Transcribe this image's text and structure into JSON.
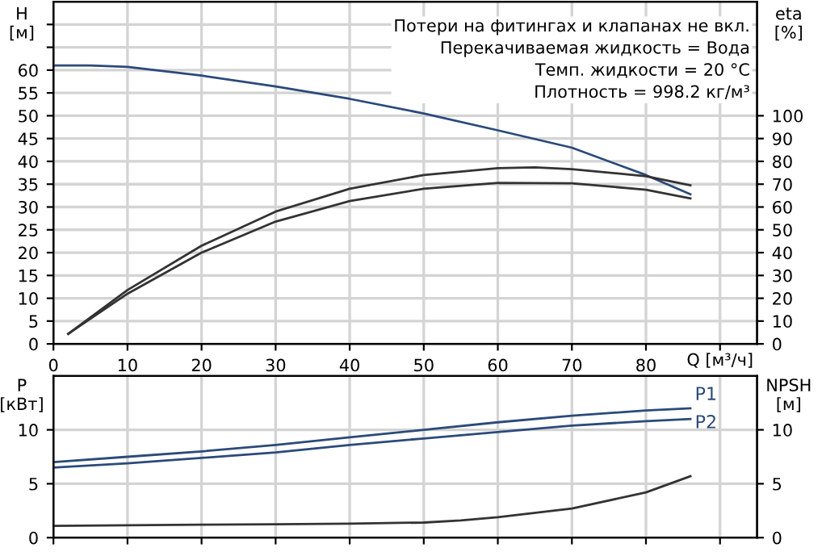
{
  "chart_data": [
    {
      "type": "line",
      "xlabel": "Q [м³/ч]",
      "ylabel": "H\n[м]",
      "y2label": "eta\n[%]",
      "annotations": [
        "Потери на фитингах и клапанах не вкл.",
        "Перекачиваемая жидкость = Вода",
        "Темп. жидкости = 20 °C",
        "Плотность = 998.2 кг/м³"
      ],
      "xlim": [
        0,
        95
      ],
      "xticks": [
        0,
        10,
        20,
        30,
        40,
        50,
        60,
        70,
        80,
        {
          "value": 90,
          "label": null
        }
      ],
      "ylim": [
        0,
        75
      ],
      "yticks": [
        0,
        5,
        10,
        15,
        20,
        25,
        30,
        35,
        40,
        45,
        50,
        55,
        60,
        {
          "value": 65,
          "label": null
        },
        {
          "value": 70,
          "label": null
        }
      ],
      "y2lim": [
        0,
        150
      ],
      "y2ticks": [
        0,
        10,
        20,
        30,
        40,
        50,
        60,
        70,
        80,
        90,
        100
      ],
      "grid": true,
      "legend": false,
      "marker": "none",
      "line_style": "solid",
      "series": [
        {
          "color": "#2b4a7a",
          "x": [
            0,
            5,
            10,
            20,
            30,
            40,
            50,
            60,
            70,
            80,
            86
          ],
          "values": [
            61,
            61,
            60.7,
            58.8,
            56.4,
            53.7,
            50.5,
            46.8,
            43,
            37,
            32.8
          ]
        },
        {
          "color": "#333333",
          "axis": "y2",
          "x": [
            2,
            10,
            20,
            30,
            40,
            50,
            60,
            65,
            70,
            80,
            86
          ],
          "values": [
            4.4,
            23.6,
            43,
            58,
            68,
            74,
            77,
            77.4,
            76.6,
            73.5,
            69.5
          ]
        },
        {
          "color": "#333333",
          "axis": "y2",
          "x": [
            2,
            10,
            20,
            30,
            40,
            50,
            60,
            70,
            80,
            86
          ],
          "values": [
            4.4,
            22,
            40,
            53.6,
            62.6,
            68,
            70.6,
            70.4,
            67.6,
            63.8
          ]
        }
      ]
    },
    {
      "type": "line",
      "ylabel": "P\n[кВт]",
      "y2label": "NPSH\n[м]",
      "xlim": [
        0,
        95
      ],
      "xticks": [
        {
          "value": 0,
          "label": null
        },
        {
          "value": 10,
          "label": null
        },
        {
          "value": 20,
          "label": null
        },
        {
          "value": 30,
          "label": null
        },
        {
          "value": 40,
          "label": null
        },
        {
          "value": 50,
          "label": null
        },
        {
          "value": 60,
          "label": null
        },
        {
          "value": 70,
          "label": null
        },
        {
          "value": 80,
          "label": null
        },
        {
          "value": 90,
          "label": null
        }
      ],
      "ylim": [
        0,
        15
      ],
      "yticks": [
        0,
        5,
        10
      ],
      "y2lim": [
        0,
        15
      ],
      "y2ticks": [
        0,
        5,
        10
      ],
      "tick_labels": "y",
      "grid": true,
      "legend": false,
      "marker": "none",
      "line_style": "solid",
      "series": [
        {
          "name": "P1",
          "color": "#2b4a7a",
          "x": [
            0,
            10,
            20,
            30,
            40,
            50,
            60,
            70,
            80,
            86
          ],
          "values": [
            7,
            7.5,
            8,
            8.6,
            9.3,
            10,
            10.7,
            11.3,
            11.8,
            12
          ]
        },
        {
          "name": "P2",
          "color": "#2b4a7a",
          "x": [
            0,
            10,
            20,
            30,
            40,
            50,
            60,
            70,
            80,
            86
          ],
          "values": [
            6.5,
            6.9,
            7.4,
            7.9,
            8.6,
            9.2,
            9.8,
            10.4,
            10.8,
            11
          ]
        },
        {
          "color": "#333333",
          "axis": "y2",
          "x": [
            0,
            10,
            20,
            30,
            40,
            50,
            55,
            60,
            70,
            80,
            86
          ],
          "values": [
            1.1,
            1.15,
            1.2,
            1.25,
            1.3,
            1.4,
            1.6,
            1.9,
            2.7,
            4.2,
            5.7
          ]
        }
      ]
    }
  ]
}
